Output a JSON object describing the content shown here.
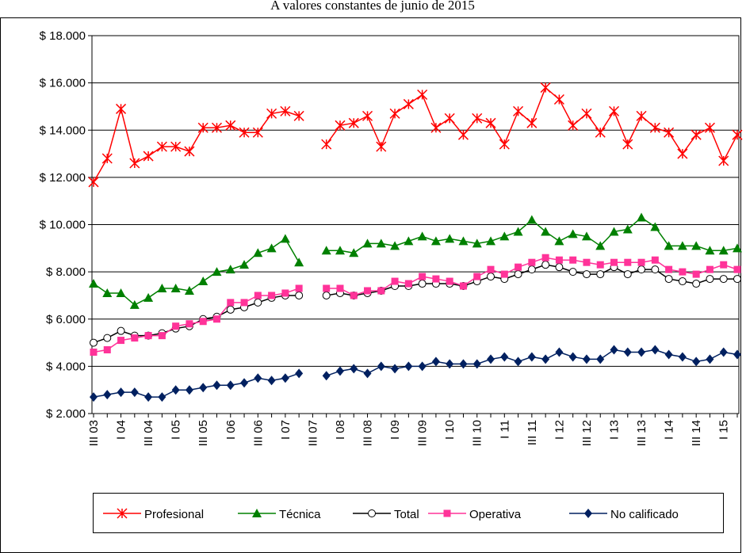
{
  "chart_data": {
    "type": "line",
    "title": "A valores constantes de junio de 2015",
    "categories": [
      "III 03",
      null,
      "I 04",
      null,
      "III 04",
      null,
      "I 05",
      null,
      "III 05",
      null,
      "I 06",
      null,
      "III 06",
      null,
      "I 07",
      null,
      "III 07",
      null,
      "I 08",
      null,
      "III 08",
      null,
      "I 09",
      null,
      "III 09",
      null,
      "I 10",
      null,
      "III 10",
      null,
      "I 11",
      null,
      "III 11",
      null,
      "I 12",
      null,
      "III 12",
      null,
      "I 13",
      null,
      "III 13",
      null,
      "I 14",
      null,
      "III 14",
      null,
      "I 15",
      null
    ],
    "ylim": [
      2000,
      18000
    ],
    "yticks": [
      {
        "value": 2000,
        "label": "$ 2.000"
      },
      {
        "value": 4000,
        "label": "$ 4.000"
      },
      {
        "value": 6000,
        "label": "$ 6.000"
      },
      {
        "value": 8000,
        "label": "$ 8.000"
      },
      {
        "value": 10000,
        "label": "$ 10.000"
      },
      {
        "value": 12000,
        "label": "$ 12.000"
      },
      {
        "value": 14000,
        "label": "$ 14.000"
      },
      {
        "value": 16000,
        "label": "$ 16.000"
      },
      {
        "value": 18000,
        "label": "$ 18.000"
      }
    ],
    "grid": true,
    "legend": "bottom",
    "series": [
      {
        "name": "Profesional",
        "color": "#ff0000",
        "marker": "asterisk",
        "values": [
          11800,
          12800,
          14900,
          12600,
          12900,
          13300,
          13300,
          13100,
          14100,
          14100,
          14200,
          13900,
          13900,
          14700,
          14800,
          14600,
          null,
          13400,
          14200,
          14300,
          14600,
          13300,
          14700,
          15100,
          15500,
          14100,
          14500,
          13800,
          14500,
          14300,
          13400,
          14800,
          14300,
          15800,
          15300,
          14200,
          14700,
          13900,
          14800,
          13400,
          14600,
          14100,
          13900,
          13000,
          13800,
          14100,
          12700,
          13800
        ]
      },
      {
        "name": "Técnica",
        "color": "#008000",
        "marker": "triangle",
        "values": [
          7500,
          7100,
          7100,
          6600,
          6900,
          7300,
          7300,
          7200,
          7600,
          8000,
          8100,
          8300,
          8800,
          9000,
          9400,
          8400,
          null,
          8900,
          8900,
          8800,
          9200,
          9200,
          9100,
          9300,
          9500,
          9300,
          9400,
          9300,
          9200,
          9300,
          9500,
          9700,
          10200,
          9700,
          9300,
          9600,
          9500,
          9100,
          9700,
          9800,
          10300,
          9900,
          9100,
          9100,
          9100,
          8900,
          8900,
          9000
        ]
      },
      {
        "name": "Total",
        "color": "#000000",
        "marker": "circle",
        "values": [
          5000,
          5200,
          5500,
          5300,
          5300,
          5400,
          5600,
          5700,
          6000,
          6100,
          6400,
          6500,
          6700,
          6900,
          7000,
          7000,
          null,
          7000,
          7100,
          7000,
          7100,
          7200,
          7400,
          7400,
          7500,
          7500,
          7500,
          7400,
          7600,
          7800,
          7700,
          7900,
          8100,
          8300,
          8200,
          8000,
          7900,
          7900,
          8200,
          7900,
          8100,
          8100,
          7700,
          7600,
          7500,
          7700,
          7700,
          7700
        ]
      },
      {
        "name": "Operativa",
        "color": "#ff3399",
        "marker": "square",
        "values": [
          4600,
          4700,
          5100,
          5200,
          5300,
          5300,
          5700,
          5800,
          5900,
          6000,
          6700,
          6700,
          7000,
          7000,
          7100,
          7300,
          null,
          7300,
          7300,
          7000,
          7200,
          7200,
          7600,
          7500,
          7800,
          7700,
          7600,
          7400,
          7800,
          8100,
          7900,
          8200,
          8400,
          8600,
          8500,
          8500,
          8400,
          8300,
          8400,
          8400,
          8400,
          8500,
          8100,
          8000,
          7900,
          8100,
          8300,
          8100
        ]
      },
      {
        "name": "No calificado",
        "color": "#002060",
        "marker": "diamond",
        "values": [
          2700,
          2800,
          2900,
          2900,
          2700,
          2700,
          3000,
          3000,
          3100,
          3200,
          3200,
          3300,
          3500,
          3400,
          3500,
          3700,
          null,
          3600,
          3800,
          3900,
          3700,
          4000,
          3900,
          4000,
          4000,
          4200,
          4100,
          4100,
          4100,
          4300,
          4400,
          4200,
          4400,
          4300,
          4600,
          4400,
          4300,
          4300,
          4700,
          4600,
          4600,
          4700,
          4500,
          4400,
          4200,
          4300,
          4600,
          4500
        ]
      }
    ]
  }
}
